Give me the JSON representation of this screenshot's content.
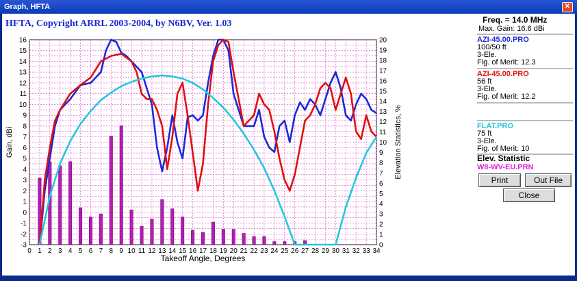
{
  "window": {
    "title": "Graph, HFTA",
    "close_glyph": "✕"
  },
  "header": {
    "text": "HFTA, Copyright ARRL 2003-2004, by N6BV, Ver. 1.03"
  },
  "sidebar": {
    "freq": "Freq. = 14.0 MHz",
    "max_gain": "Max. Gain: 16.6 dBi",
    "files": [
      {
        "name": "AZI-45.00.PRO",
        "lines": [
          "100/50 ft",
          "3-Ele."
        ],
        "fom": "Fig. of Merit: 12.3",
        "color": "#1a2ad8"
      },
      {
        "name": "AZI-45.00.PRO",
        "lines": [
          "56 ft",
          "3-Ele."
        ],
        "fom": "Fig. of Merit: 12.2",
        "color": "#e01010"
      },
      {
        "name": "FLAT.PRO",
        "lines": [
          "75 ft",
          "3-Ele."
        ],
        "fom": "Fig. of Merit: 10",
        "color": "#22c8e0"
      }
    ],
    "elev_title": "Elev. Statistic",
    "elev_file": "W8-WV-EU.PRN",
    "elev_color": "#e020e0",
    "buttons": {
      "print": "Print",
      "out_file": "Out File",
      "close": "Close"
    }
  },
  "chart_data": {
    "type": "line",
    "xlabel": "Takeoff Angle, Degrees",
    "ylabel": "Gain, dBi",
    "y2label": "Elevation Statistics, %",
    "xlim": [
      0,
      34
    ],
    "ylim": [
      -3,
      16
    ],
    "y2lim": [
      0,
      20
    ],
    "x_ticks": [
      0,
      1,
      2,
      3,
      4,
      5,
      6,
      7,
      8,
      9,
      10,
      11,
      12,
      13,
      14,
      15,
      16,
      17,
      18,
      19,
      20,
      21,
      22,
      23,
      24,
      25,
      26,
      27,
      28,
      29,
      30,
      31,
      32,
      33,
      34
    ],
    "y_ticks": [
      -3,
      -2,
      -1,
      0,
      1,
      2,
      3,
      4,
      5,
      6,
      7,
      8,
      9,
      10,
      11,
      12,
      13,
      14,
      15,
      16
    ],
    "y2_ticks": [
      0,
      1,
      2,
      3,
      4,
      5,
      6,
      7,
      8,
      9,
      10,
      11,
      12,
      13,
      14,
      15,
      16,
      17,
      18,
      19,
      20
    ],
    "grid": true,
    "series": [
      {
        "name": "AZI-45.00.PRO (100/50 ft)",
        "color": "#1a2ad8",
        "axis": "left",
        "x": [
          1,
          1.5,
          2,
          2.5,
          3,
          4,
          5,
          6,
          7,
          7.5,
          8,
          8.5,
          9,
          9.5,
          10,
          11,
          12,
          12.5,
          13,
          13.5,
          14,
          14.5,
          15,
          15.5,
          16,
          16.5,
          17,
          17.5,
          18,
          18.5,
          19,
          19.5,
          20,
          21,
          22,
          22.5,
          23,
          23.5,
          24,
          24.5,
          25,
          25.5,
          26,
          26.5,
          27,
          27.5,
          28,
          28.5,
          29,
          29.5,
          30,
          30.5,
          31,
          31.5,
          32,
          32.5,
          33,
          33.5,
          34
        ],
        "y": [
          -3,
          2,
          5,
          8,
          9.5,
          10.5,
          11.8,
          12,
          13,
          15,
          16,
          15.8,
          14.8,
          14.5,
          14,
          13,
          10,
          6,
          3.8,
          6,
          9,
          6.5,
          5,
          8.8,
          9,
          8.5,
          9,
          12,
          14.5,
          16,
          16,
          15,
          11,
          8,
          8,
          9.5,
          7,
          6,
          5.6,
          8,
          8.5,
          6.5,
          9,
          10.2,
          9.5,
          10.5,
          10,
          9,
          10.5,
          12,
          13,
          11.5,
          9,
          8.5,
          10,
          11,
          10.5,
          9.5,
          9.2
        ]
      },
      {
        "name": "AZI-45.00.PRO (56 ft)",
        "color": "#e01010",
        "axis": "left",
        "x": [
          1,
          1.5,
          2,
          2.5,
          3,
          4,
          5,
          6,
          7,
          8,
          9,
          10,
          10.5,
          11,
          11.5,
          12,
          12.5,
          13,
          13.5,
          14,
          14.5,
          15,
          15.5,
          16,
          16.5,
          17,
          17.5,
          18,
          18.5,
          19,
          19.5,
          20,
          21,
          22,
          22.5,
          23,
          23.5,
          24,
          24.5,
          25,
          25.5,
          26,
          26.5,
          27,
          27.5,
          28,
          28.5,
          29,
          29.5,
          30,
          30.5,
          31,
          31.5,
          32,
          32.5,
          33,
          33.5,
          34
        ],
        "y": [
          -3,
          3,
          6,
          8.5,
          9.5,
          11,
          11.8,
          12.5,
          14,
          14.5,
          14.7,
          14,
          13,
          11,
          10.5,
          10.5,
          9.5,
          8,
          4,
          7,
          11,
          12,
          9,
          5.5,
          2,
          4.5,
          10,
          14,
          15.5,
          16,
          15.8,
          13,
          8,
          9,
          11,
          10,
          9.5,
          7.5,
          5,
          3,
          2,
          3.5,
          6,
          8.5,
          9,
          10,
          11.5,
          12,
          11.5,
          9.5,
          11,
          12.5,
          11,
          7.5,
          6.8,
          9,
          7.5,
          7
        ]
      },
      {
        "name": "FLAT.PRO (75 ft)",
        "color": "#22c8e0",
        "axis": "left",
        "x": [
          1,
          2,
          3,
          4,
          5,
          6,
          7,
          8,
          9,
          10,
          11,
          12,
          13,
          14,
          15,
          16,
          17,
          18,
          19,
          20,
          21,
          22,
          23,
          24,
          25,
          26,
          27,
          28,
          29,
          30,
          31,
          32,
          33,
          34
        ],
        "y": [
          -3,
          1.5,
          4.5,
          6.6,
          8.2,
          9.4,
          10.4,
          11.1,
          11.7,
          12.1,
          12.4,
          12.6,
          12.7,
          12.6,
          12.4,
          12,
          11.4,
          10.6,
          9.7,
          8.6,
          7.3,
          5.8,
          4.1,
          2,
          -0.4,
          -3,
          -3,
          -3,
          -3,
          -3,
          0.5,
          3.2,
          5.5,
          7
        ]
      }
    ],
    "bars": {
      "name": "W8-WV-EU.PRN",
      "color": "#b81ab8",
      "axis": "right",
      "x": [
        1,
        2,
        3,
        4,
        5,
        6,
        7,
        8,
        9,
        10,
        11,
        12,
        13,
        14,
        15,
        16,
        17,
        18,
        19,
        20,
        21,
        22,
        23,
        24,
        25,
        26,
        27
      ],
      "values": [
        6.5,
        8.1,
        7.7,
        8.1,
        3.6,
        2.7,
        3.0,
        10.6,
        11.6,
        3.4,
        1.8,
        2.5,
        4.4,
        3.5,
        2.7,
        1.4,
        1.2,
        2.2,
        1.5,
        1.5,
        1.1,
        0.8,
        0.8,
        0.3,
        0.3,
        0.3,
        0.4
      ]
    }
  }
}
